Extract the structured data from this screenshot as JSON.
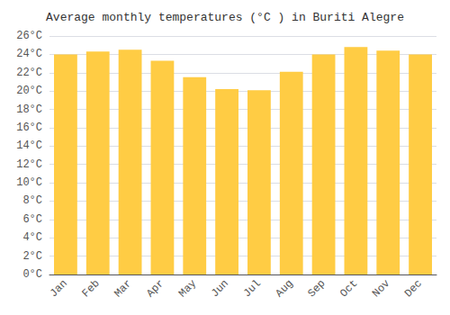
{
  "chart_data": {
    "type": "bar",
    "title": "Average monthly temperatures (°C ) in Buriti Alegre",
    "categories": [
      "Jan",
      "Feb",
      "Mar",
      "Apr",
      "May",
      "Jun",
      "Jul",
      "Aug",
      "Sep",
      "Oct",
      "Nov",
      "Dec"
    ],
    "values": [
      24.0,
      24.3,
      24.5,
      23.3,
      21.5,
      20.2,
      20.1,
      22.1,
      24.0,
      24.8,
      24.4,
      24.0
    ],
    "color": "#FFCC44",
    "ylim": [
      0,
      26
    ],
    "yticks": [
      {
        "value": 0,
        "label": "0°C"
      },
      {
        "value": 2,
        "label": "2°C"
      },
      {
        "value": 4,
        "label": "4°C"
      },
      {
        "value": 6,
        "label": "6°C"
      },
      {
        "value": 8,
        "label": "8°C"
      },
      {
        "value": 10,
        "label": "10°C"
      },
      {
        "value": 12,
        "label": "12°C"
      },
      {
        "value": 14,
        "label": "14°C"
      },
      {
        "value": 16,
        "label": "16°C"
      },
      {
        "value": 18,
        "label": "18°C"
      },
      {
        "value": 20,
        "label": "20°C"
      },
      {
        "value": 22,
        "label": "22°C"
      },
      {
        "value": 24,
        "label": "24°C"
      },
      {
        "value": 26,
        "label": "26°C"
      }
    ],
    "grid": true
  }
}
